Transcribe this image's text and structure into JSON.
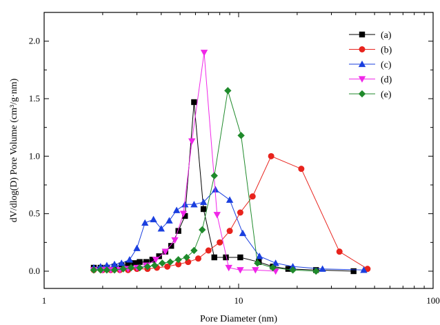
{
  "chart_data": {
    "type": "line",
    "xlabel": "Pore Diameter (nm)",
    "ylabel": "dV/dlog(D) Pore Volume (cm³/g·nm)",
    "xscale": "log",
    "xlim": [
      1,
      100
    ],
    "ylim": [
      -0.15,
      2.25
    ],
    "xticks": [
      1,
      10,
      100
    ],
    "xtick_labels": [
      "1",
      "10",
      "100"
    ],
    "yticks": [
      0.0,
      0.5,
      1.0,
      1.5,
      2.0
    ],
    "ytick_labels": [
      "0.0",
      "0.5",
      "1.0",
      "1.5",
      "2.0"
    ],
    "grid": false,
    "legend_position": "top-right",
    "series": [
      {
        "name": "(a)",
        "color": "#000000",
        "marker": "square",
        "points": [
          [
            1.8,
            0.03
          ],
          [
            1.95,
            0.03
          ],
          [
            2.1,
            0.03
          ],
          [
            2.3,
            0.04
          ],
          [
            2.5,
            0.05
          ],
          [
            2.7,
            0.06
          ],
          [
            2.9,
            0.07
          ],
          [
            3.1,
            0.08
          ],
          [
            3.35,
            0.08
          ],
          [
            3.6,
            0.1
          ],
          [
            3.9,
            0.13
          ],
          [
            4.2,
            0.17
          ],
          [
            4.5,
            0.22
          ],
          [
            4.9,
            0.35
          ],
          [
            5.3,
            0.48
          ],
          [
            5.9,
            1.47
          ],
          [
            6.6,
            0.54
          ],
          [
            7.5,
            0.12
          ],
          [
            8.6,
            0.12
          ],
          [
            10.2,
            0.12
          ],
          [
            12.7,
            0.08
          ],
          [
            15,
            0.04
          ],
          [
            18,
            0.02
          ],
          [
            25,
            0.01
          ],
          [
            39,
            0.0
          ]
        ]
      },
      {
        "name": "(b)",
        "color": "#e8231d",
        "marker": "circle",
        "points": [
          [
            1.8,
            0.01
          ],
          [
            2.0,
            0.01
          ],
          [
            2.2,
            0.01
          ],
          [
            2.45,
            0.01
          ],
          [
            2.7,
            0.01
          ],
          [
            3.0,
            0.02
          ],
          [
            3.4,
            0.02
          ],
          [
            3.8,
            0.03
          ],
          [
            4.3,
            0.04
          ],
          [
            4.9,
            0.06
          ],
          [
            5.5,
            0.08
          ],
          [
            6.2,
            0.11
          ],
          [
            7.0,
            0.18
          ],
          [
            8.0,
            0.25
          ],
          [
            9.0,
            0.35
          ],
          [
            10.2,
            0.51
          ],
          [
            11.8,
            0.65
          ],
          [
            14.7,
            1.0
          ],
          [
            21,
            0.89
          ],
          [
            33,
            0.17
          ],
          [
            46,
            0.02
          ]
        ]
      },
      {
        "name": "(c)",
        "color": "#1a3fdf",
        "marker": "triangle-up",
        "points": [
          [
            1.8,
            0.03
          ],
          [
            1.95,
            0.04
          ],
          [
            2.1,
            0.05
          ],
          [
            2.3,
            0.06
          ],
          [
            2.5,
            0.07
          ],
          [
            2.75,
            0.1
          ],
          [
            3.0,
            0.2
          ],
          [
            3.3,
            0.42
          ],
          [
            3.65,
            0.45
          ],
          [
            4.0,
            0.37
          ],
          [
            4.4,
            0.44
          ],
          [
            4.8,
            0.53
          ],
          [
            5.3,
            0.58
          ],
          [
            5.9,
            0.58
          ],
          [
            6.6,
            0.6
          ],
          [
            7.6,
            0.71
          ],
          [
            9.0,
            0.62
          ],
          [
            10.5,
            0.33
          ],
          [
            12.8,
            0.13
          ],
          [
            15.5,
            0.07
          ],
          [
            19,
            0.04
          ],
          [
            27,
            0.02
          ],
          [
            44,
            0.01
          ]
        ]
      },
      {
        "name": "(d)",
        "color": "#f026e8",
        "marker": "triangle-down",
        "points": [
          [
            1.8,
            0.01
          ],
          [
            2.0,
            0.01
          ],
          [
            2.2,
            0.01
          ],
          [
            2.45,
            0.01
          ],
          [
            2.7,
            0.02
          ],
          [
            3.0,
            0.03
          ],
          [
            3.35,
            0.05
          ],
          [
            3.75,
            0.1
          ],
          [
            4.2,
            0.17
          ],
          [
            4.7,
            0.27
          ],
          [
            5.2,
            0.5
          ],
          [
            5.75,
            1.13
          ],
          [
            6.65,
            1.9
          ],
          [
            7.75,
            0.49
          ],
          [
            8.9,
            0.03
          ],
          [
            10.2,
            0.01
          ],
          [
            12.2,
            0.01
          ],
          [
            15.5,
            0.0
          ]
        ]
      },
      {
        "name": "(e)",
        "color": "#1f8a2b",
        "marker": "diamond",
        "points": [
          [
            1.8,
            0.01
          ],
          [
            1.95,
            0.01
          ],
          [
            2.1,
            0.01
          ],
          [
            2.3,
            0.01
          ],
          [
            2.55,
            0.02
          ],
          [
            2.8,
            0.03
          ],
          [
            3.1,
            0.03
          ],
          [
            3.4,
            0.04
          ],
          [
            3.7,
            0.05
          ],
          [
            4.05,
            0.07
          ],
          [
            4.45,
            0.08
          ],
          [
            4.9,
            0.1
          ],
          [
            5.4,
            0.12
          ],
          [
            5.9,
            0.18
          ],
          [
            6.5,
            0.36
          ],
          [
            7.5,
            0.83
          ],
          [
            8.8,
            1.57
          ],
          [
            10.3,
            1.18
          ],
          [
            12.5,
            0.07
          ],
          [
            15,
            0.03
          ],
          [
            19,
            0.01
          ],
          [
            25,
            0.0
          ]
        ]
      }
    ]
  }
}
